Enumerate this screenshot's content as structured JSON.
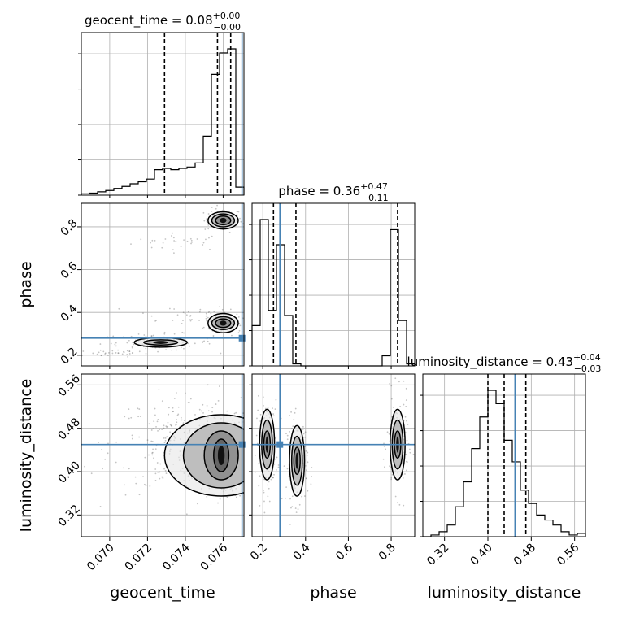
{
  "chart_data": {
    "type": "corner",
    "parameters": [
      "geocent_time",
      "phase",
      "luminosity_distance"
    ],
    "panel_titles": {
      "geocent_time": {
        "label": "geocent_time = 0.08",
        "plus": "+0.00",
        "minus": "−0.00"
      },
      "phase": {
        "label": "phase = 0.36",
        "plus": "+0.47",
        "minus": "−0.11"
      },
      "luminosity_distance": {
        "label": "luminosity_distance = 0.43",
        "plus": "+0.04",
        "minus": "−0.03"
      }
    },
    "axis_ranges": {
      "geocent_time": [
        0.0685,
        0.0771
      ],
      "phase": [
        0.15,
        0.91
      ],
      "luminosity_distance": [
        0.28,
        0.58
      ]
    },
    "ticks": {
      "geocent_time": [
        0.07,
        0.072,
        0.074,
        0.076
      ],
      "phase": [
        0.2,
        0.4,
        0.6,
        0.8
      ],
      "luminosity_distance": [
        0.32,
        0.4,
        0.48,
        0.56
      ]
    },
    "tick_labels": {
      "geocent_time": [
        "0.070",
        "0.072",
        "0.074",
        "0.076"
      ],
      "phase": [
        "0.2",
        "0.4",
        "0.6",
        "0.8"
      ],
      "luminosity_distance": [
        "0.32",
        "0.40",
        "0.48",
        "0.56"
      ]
    },
    "axis_labels": {
      "x": [
        "geocent_time",
        "phase",
        "luminosity_distance"
      ],
      "y": [
        "phase",
        "luminosity_distance"
      ]
    },
    "truths": {
      "geocent_time": 0.077,
      "phase": 0.28,
      "luminosity_distance": 0.45
    },
    "quantiles": {
      "geocent_time": [
        0.0729,
        0.0757,
        0.0764
      ],
      "phase": [
        0.25,
        0.355,
        0.83
      ],
      "luminosity_distance": [
        0.4,
        0.43,
        0.47
      ]
    },
    "histograms": {
      "geocent_time": {
        "edges_start": 0.0685,
        "bin_width": 0.00043,
        "counts": [
          2,
          3,
          5,
          7,
          10,
          13,
          17,
          20,
          24,
          38,
          40,
          38,
          40,
          42,
          48,
          88,
          180,
          212,
          218,
          12
        ]
      },
      "phase": {
        "edges_start": 0.15,
        "bin_width": 0.038,
        "counts": [
          40,
          145,
          55,
          120,
          50,
          2,
          0,
          0,
          0,
          0,
          0,
          0,
          0,
          0,
          0,
          0,
          10,
          135,
          45,
          2
        ]
      },
      "luminosity_distance": {
        "edges_start": 0.28,
        "bin_width": 0.015,
        "counts": [
          0,
          1,
          3,
          7,
          18,
          33,
          53,
          72,
          88,
          80,
          58,
          45,
          28,
          20,
          13,
          10,
          7,
          3,
          1,
          2
        ]
      }
    },
    "density_regions": {
      "phase_vs_geocent_time": [
        {
          "cx": 0.0738,
          "cy": 0.73,
          "sx": 0.0013,
          "sy": 0.02,
          "n": 30
        },
        {
          "cx": 0.076,
          "cy": 0.83,
          "sx": 0.0005,
          "sy": 0.028,
          "n": 90
        },
        {
          "cx": 0.0737,
          "cy": 0.39,
          "sx": 0.0014,
          "sy": 0.025,
          "n": 30
        },
        {
          "cx": 0.076,
          "cy": 0.35,
          "sx": 0.0005,
          "sy": 0.028,
          "n": 90
        },
        {
          "cx": 0.0725,
          "cy": 0.26,
          "sx": 0.0015,
          "sy": 0.02,
          "n": 90
        },
        {
          "cx": 0.07,
          "cy": 0.21,
          "sx": 0.001,
          "sy": 0.01,
          "n": 30
        }
      ],
      "luminosity_distance_vs_geocent_time": [
        {
          "cx": 0.0745,
          "cy": 0.45,
          "sx": 0.0022,
          "sy": 0.045,
          "n": 350
        },
        {
          "cx": 0.076,
          "cy": 0.42,
          "sx": 0.0006,
          "sy": 0.035,
          "n": 200
        }
      ],
      "luminosity_distance_vs_phase": [
        {
          "cx": 0.22,
          "cy": 0.45,
          "sx": 0.025,
          "sy": 0.04,
          "n": 150
        },
        {
          "cx": 0.36,
          "cy": 0.42,
          "sx": 0.025,
          "sy": 0.04,
          "n": 150
        },
        {
          "cx": 0.83,
          "cy": 0.45,
          "sx": 0.025,
          "sy": 0.045,
          "n": 170
        }
      ]
    },
    "contours": {
      "phase_vs_geocent_time": [
        {
          "cx": 0.076,
          "cy": 0.83,
          "rx": [
            0.0004,
            0.0006,
            0.0008
          ],
          "ry": [
            0.02,
            0.03,
            0.04
          ]
        },
        {
          "cx": 0.076,
          "cy": 0.35,
          "rx": [
            0.0004,
            0.0006,
            0.0008
          ],
          "ry": [
            0.02,
            0.03,
            0.045
          ]
        },
        {
          "cx": 0.0727,
          "cy": 0.26,
          "rx": [
            0.0009,
            0.0014
          ],
          "ry": [
            0.012,
            0.022
          ]
        }
      ],
      "luminosity_distance_vs_geocent_time": [
        {
          "cx": 0.0759,
          "cy": 0.43,
          "rx": [
            0.0004,
            0.0009,
            0.002,
            0.003
          ],
          "ry": [
            0.03,
            0.045,
            0.06,
            0.075
          ]
        }
      ],
      "luminosity_distance_vs_phase": [
        {
          "cx": 0.22,
          "cy": 0.45,
          "rx": [
            0.015,
            0.025,
            0.035
          ],
          "ry": [
            0.025,
            0.045,
            0.065
          ]
        },
        {
          "cx": 0.36,
          "cy": 0.42,
          "rx": [
            0.015,
            0.025,
            0.035
          ],
          "ry": [
            0.025,
            0.045,
            0.065
          ]
        },
        {
          "cx": 0.83,
          "cy": 0.45,
          "rx": [
            0.015,
            0.025,
            0.035
          ],
          "ry": [
            0.025,
            0.045,
            0.065
          ]
        }
      ]
    },
    "colors": {
      "truth": "#4682b4",
      "hist": "#000000",
      "grid": "#b0b0b0",
      "scatter": "#555555"
    },
    "grid": true
  }
}
